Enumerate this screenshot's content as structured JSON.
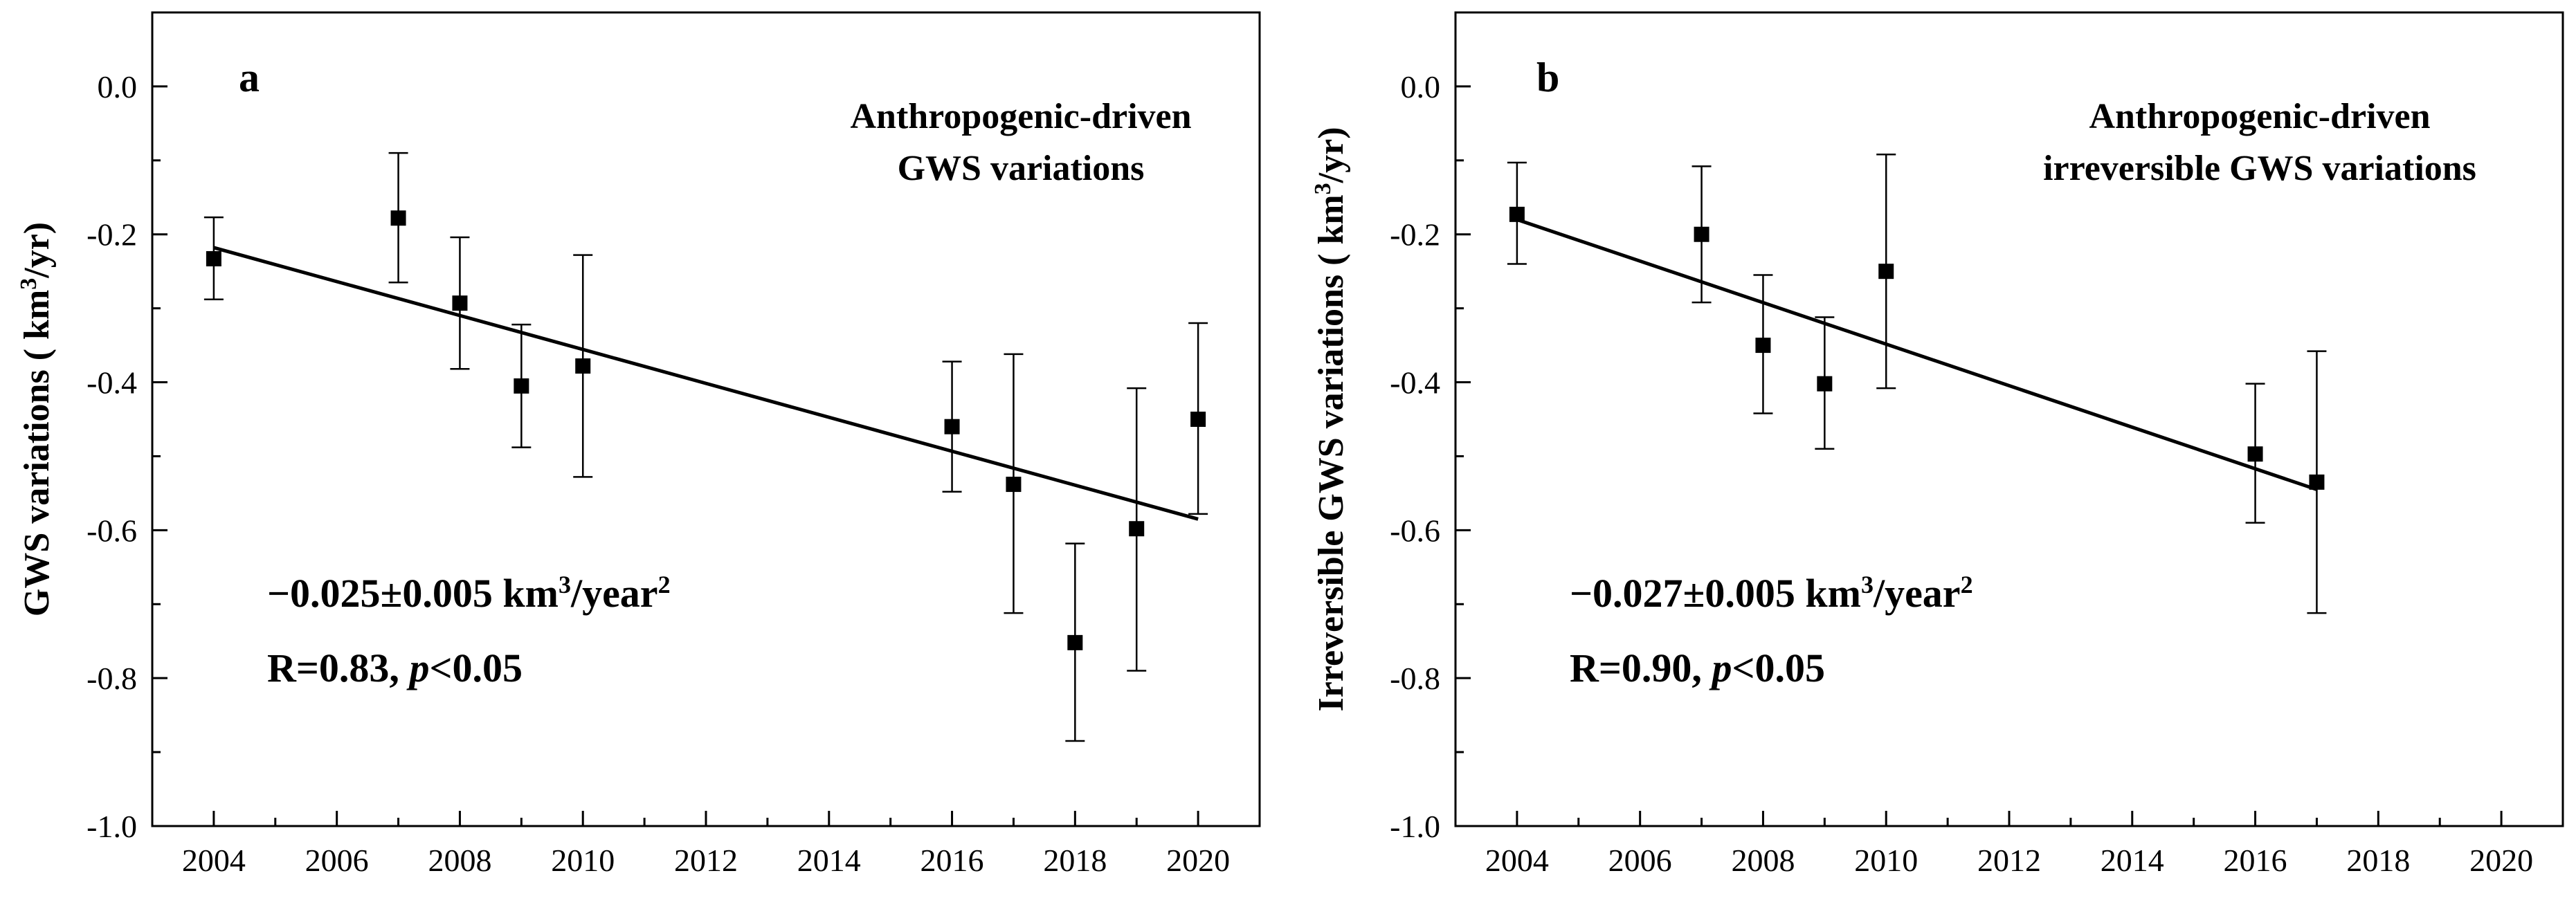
{
  "chart_data": [
    {
      "type": "scatter",
      "panel_label": "a",
      "title": "",
      "annotation_lines": [
        "Anthropogenic-driven",
        "GWS variations"
      ],
      "ylabel_prefix": "GWS variations ( km",
      "ylabel_sup": "3",
      "ylabel_suffix": "/yr)",
      "xlabel": "",
      "xlim": [
        2003,
        2021
      ],
      "ylim": [
        -1.0,
        0.1
      ],
      "xticks": [
        2004,
        2006,
        2008,
        2010,
        2012,
        2014,
        2016,
        2018,
        2020
      ],
      "xtick_labels": [
        "2004",
        "2006",
        "2008",
        "2010",
        "2012",
        "2014",
        "2016",
        "2018",
        "2020"
      ],
      "yticks": [
        0.0,
        -0.2,
        -0.4,
        -0.6,
        -0.8,
        -1.0
      ],
      "ytick_labels": [
        "0.0",
        "-0.2",
        "-0.4",
        "-0.6",
        "-0.8",
        "-1.0"
      ],
      "series": [
        {
          "name": "Anthropogenic-driven GWS variations",
          "x": [
            2004,
            2007,
            2008,
            2009,
            2010,
            2016,
            2017,
            2018,
            2019,
            2020
          ],
          "y": [
            -0.233,
            -0.178,
            -0.293,
            -0.405,
            -0.378,
            -0.46,
            -0.538,
            -0.752,
            -0.598,
            -0.45
          ],
          "err_low": [
            -0.288,
            -0.265,
            -0.382,
            -0.488,
            -0.528,
            -0.548,
            -0.712,
            -0.885,
            -0.79,
            -0.578
          ],
          "err_high": [
            -0.177,
            -0.09,
            -0.204,
            -0.322,
            -0.228,
            -0.372,
            -0.362,
            -0.618,
            -0.408,
            -0.32
          ]
        }
      ],
      "fit": {
        "x": [
          2004,
          2020
        ],
        "y": [
          -0.218,
          -0.585
        ]
      },
      "stat_value": "−0.025±0.005 km",
      "stat_sup1": "3",
      "stat_mid": "/year",
      "stat_sup2": "2",
      "r_text": "R=0.83, ",
      "p_text": "p",
      "p_rest": "<0.05"
    },
    {
      "type": "scatter",
      "panel_label": "b",
      "title": "",
      "annotation_lines": [
        "Anthropogenic-driven",
        "irreversible GWS variations"
      ],
      "ylabel_prefix": "Irreversible GWS variations ( km",
      "ylabel_sup": "3",
      "ylabel_suffix": "/yr)",
      "xlabel": "",
      "xlim": [
        2003,
        2021
      ],
      "ylim": [
        -1.0,
        0.1
      ],
      "xticks": [
        2004,
        2006,
        2008,
        2010,
        2012,
        2014,
        2016,
        2018,
        2020
      ],
      "xtick_labels": [
        "2004",
        "2006",
        "2008",
        "2010",
        "2012",
        "2014",
        "2016",
        "2018",
        "2020"
      ],
      "yticks": [
        0.0,
        -0.2,
        -0.4,
        -0.6,
        -0.8,
        -1.0
      ],
      "ytick_labels": [
        "0.0",
        "-0.2",
        "-0.4",
        "-0.6",
        "-0.8",
        "-1.0"
      ],
      "series": [
        {
          "name": "Anthropogenic-driven irreversible GWS variations",
          "x": [
            2004,
            2007,
            2008,
            2009,
            2010,
            2016,
            2017
          ],
          "y": [
            -0.173,
            -0.2,
            -0.35,
            -0.402,
            -0.25,
            -0.497,
            -0.535
          ],
          "err_low": [
            -0.24,
            -0.292,
            -0.442,
            -0.49,
            -0.408,
            -0.59,
            -0.712
          ],
          "err_high": [
            -0.103,
            -0.108,
            -0.255,
            -0.312,
            -0.092,
            -0.402,
            -0.358
          ]
        }
      ],
      "fit": {
        "x": [
          2004,
          2017
        ],
        "y": [
          -0.18,
          -0.545
        ]
      },
      "stat_value": "−0.027±0.005 km",
      "stat_sup1": "3",
      "stat_mid": "/year",
      "stat_sup2": "2",
      "r_text": "R=0.90, ",
      "p_text": "p",
      "p_rest": "<0.05"
    }
  ]
}
